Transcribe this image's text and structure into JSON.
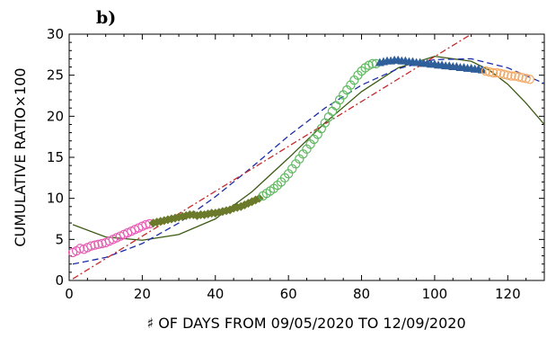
{
  "chart_data": {
    "type": "scatter",
    "panel_label": "b)",
    "xlabel": "♯ OF DAYS FROM 09/05/2020 TO 12/09/2020",
    "ylabel": "CUMULATIVE RATIO×100",
    "xlim": [
      0,
      130
    ],
    "ylim": [
      0,
      30
    ],
    "x_ticks": [
      "0",
      "20",
      "40",
      "60",
      "80",
      "100",
      "120"
    ],
    "y_ticks": [
      "0",
      "5",
      "10",
      "15",
      "20",
      "25",
      "30"
    ],
    "grid": false,
    "legend": "none",
    "series": [
      {
        "marker": "open-circle",
        "color": "#e85cb4",
        "x": [
          1,
          2,
          3,
          4,
          5,
          6,
          7,
          8,
          9,
          10,
          11,
          12,
          13,
          14,
          15,
          16,
          17,
          18,
          19,
          20,
          21,
          22
        ],
        "y": [
          3.4,
          3.6,
          3.9,
          3.8,
          4.0,
          4.2,
          4.3,
          4.4,
          4.5,
          4.6,
          4.8,
          5.0,
          5.2,
          5.4,
          5.6,
          5.8,
          6.0,
          6.2,
          6.4,
          6.6,
          6.8,
          6.9
        ]
      },
      {
        "marker": "filled-diamond",
        "color": "#6b7a2a",
        "x": [
          23,
          24,
          25,
          26,
          27,
          28,
          29,
          30,
          31,
          32,
          33,
          34,
          35,
          36,
          37,
          38,
          39,
          40,
          41,
          42,
          43,
          44,
          45,
          46,
          47,
          48,
          49,
          50,
          51,
          52
        ],
        "y": [
          7.0,
          7.1,
          7.2,
          7.3,
          7.4,
          7.5,
          7.6,
          7.7,
          7.8,
          7.9,
          8.0,
          8.0,
          7.9,
          8.0,
          8.0,
          8.1,
          8.2,
          8.2,
          8.3,
          8.4,
          8.5,
          8.6,
          8.8,
          8.9,
          9.0,
          9.2,
          9.4,
          9.6,
          9.8,
          10.0
        ]
      },
      {
        "marker": "open-circle",
        "color": "#5fb85f",
        "x": [
          53,
          54,
          55,
          56,
          57,
          58,
          59,
          60,
          61,
          62,
          63,
          64,
          65,
          66,
          67,
          68,
          69,
          70,
          71,
          72,
          73,
          74,
          75,
          76,
          77,
          78,
          79,
          80,
          81,
          82,
          83,
          84
        ],
        "y": [
          10.3,
          10.6,
          10.9,
          11.2,
          11.6,
          12.0,
          12.5,
          13.0,
          13.6,
          14.2,
          14.8,
          15.4,
          16.0,
          16.6,
          17.2,
          17.8,
          18.5,
          19.2,
          19.9,
          20.6,
          21.3,
          22.0,
          22.6,
          23.2,
          23.8,
          24.4,
          25.0,
          25.5,
          25.9,
          26.2,
          26.4,
          26.4
        ]
      },
      {
        "marker": "filled-triangle",
        "color": "#2f5f9a",
        "x": [
          85,
          86,
          87,
          88,
          89,
          90,
          91,
          92,
          93,
          94,
          95,
          96,
          97,
          98,
          99,
          100,
          101,
          102,
          103,
          104,
          105,
          106,
          107,
          108,
          109,
          110,
          111,
          112,
          113
        ],
        "y": [
          26.5,
          26.6,
          26.7,
          26.7,
          26.8,
          26.8,
          26.7,
          26.7,
          26.6,
          26.6,
          26.5,
          26.5,
          26.4,
          26.4,
          26.3,
          26.3,
          26.2,
          26.2,
          26.1,
          26.1,
          26.0,
          26.0,
          25.9,
          25.9,
          25.8,
          25.8,
          25.7,
          25.7,
          25.6
        ]
      },
      {
        "marker": "open-circle",
        "color": "#f4a860",
        "x": [
          114,
          115,
          116,
          117,
          118,
          119,
          120,
          121,
          122,
          123,
          124,
          125,
          126
        ],
        "y": [
          25.5,
          25.4,
          25.3,
          25.3,
          25.2,
          25.1,
          25.0,
          24.9,
          24.9,
          24.8,
          24.7,
          24.6,
          24.5
        ]
      },
      {
        "line": "solid",
        "color": "#3c5a14",
        "x": [
          1,
          10,
          20,
          30,
          40,
          50,
          60,
          70,
          80,
          90,
          100,
          110,
          115,
          120,
          125,
          130
        ],
        "y": [
          6.8,
          5.3,
          4.9,
          5.6,
          7.5,
          10.8,
          14.9,
          19.2,
          23.0,
          25.9,
          27.3,
          26.7,
          25.6,
          23.9,
          21.6,
          19.0
        ]
      },
      {
        "line": "dashed",
        "color": "#1a2ca8",
        "x": [
          1,
          10,
          20,
          30,
          40,
          50,
          60,
          70,
          80,
          90,
          100,
          110,
          120,
          130
        ],
        "y": [
          2.0,
          2.8,
          4.5,
          7.0,
          10.2,
          13.8,
          17.6,
          21.0,
          23.8,
          25.8,
          26.9,
          27.0,
          25.9,
          24.0
        ]
      },
      {
        "line": "dash-dot",
        "color": "#c42b2b",
        "x": [
          1,
          110
        ],
        "y": [
          0.2,
          30.0
        ]
      }
    ]
  },
  "colors": {
    "axis": "#000000",
    "background": "#ffffff"
  }
}
